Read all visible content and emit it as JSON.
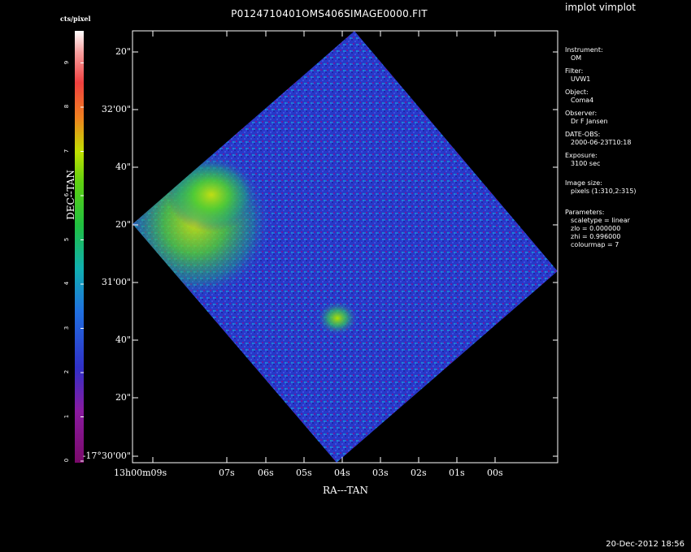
{
  "window": {
    "title": "implot vimplot"
  },
  "plot": {
    "title": "P0124710401OMS406SIMAGE0000.FIT",
    "xlabel": "RA---TAN",
    "ylabel": "DEC--TAN",
    "colorbar_label": "cts/pixel",
    "colorbar_ticks": [
      "0",
      "1",
      "2",
      "3",
      "4",
      "5",
      "6",
      "7",
      "8",
      "9"
    ],
    "dec_ticks": [
      "20\"",
      "32'00\"",
      "40\"",
      "20\"",
      "31'00\"",
      "40\"",
      "20\"",
      "-17°30'00\""
    ],
    "ra_ticks": [
      "13h00m09s",
      "07s",
      "06s",
      "05s",
      "04s",
      "03s",
      "02s",
      "01s",
      "00s"
    ]
  },
  "info": {
    "instrument_label": "Instrument:",
    "instrument": "OM",
    "filter_label": "Filter:",
    "filter": "UVW1",
    "object_label": "Object:",
    "object": "Coma4",
    "observer_label": "Observer:",
    "observer": "Dr F Jansen",
    "date_label": "DATE-OBS:",
    "date_obs": "2000-06-23T10:18",
    "exposure_label": "Exposure:",
    "exposure": "3100 sec",
    "imgsize_label": "Image size:",
    "imgsize": "pixels (1:310,2:315)",
    "params_label": "Parameters:",
    "scaletype": "scaletype = linear",
    "zlo": "zlo = 0.000000",
    "zhi": "zhi = 0.996000",
    "colourmap": "colourmap =   7"
  },
  "footer": {
    "timestamp": "20-Dec-2012 18:56"
  },
  "colors": {
    "background": "#000000",
    "field": "#2a3cd0",
    "hotspot": "#a6e000",
    "frame": "#ffffff"
  }
}
